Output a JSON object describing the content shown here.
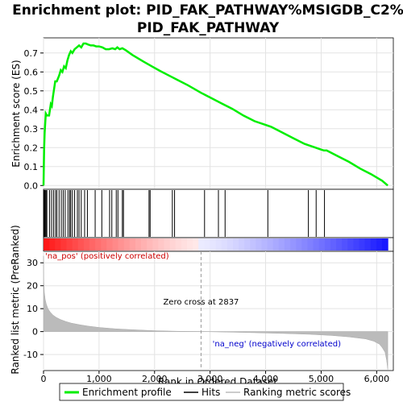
{
  "chart_data": {
    "type": "line",
    "title_line1": "Enrichment plot: PID_FAK_PATHWAY%MSIGDB_C2%",
    "title_line2": "PID_FAK_PATHWAY",
    "top_panel": {
      "ylabel": "Enrichment score (ES)",
      "ylim": [
        -0.02,
        0.78
      ],
      "yticks": [
        0.0,
        0.1,
        0.2,
        0.3,
        0.4,
        0.5,
        0.6,
        0.7
      ],
      "ytick_labels": [
        "0.0",
        "0.1",
        "0.2",
        "0.3",
        "0.4",
        "0.5",
        "0.6",
        "0.7"
      ],
      "grid": true,
      "series_color": "#00ee00",
      "es_x": [
        0,
        10,
        20,
        40,
        60,
        100,
        130,
        150,
        170,
        190,
        210,
        240,
        280,
        310,
        340,
        370,
        400,
        430,
        460,
        490,
        520,
        560,
        600,
        640,
        680,
        720,
        760,
        800,
        850,
        900,
        950,
        1000,
        1060,
        1120,
        1180,
        1240,
        1290,
        1330,
        1370,
        1420,
        1480,
        1600,
        1800,
        1950,
        2100,
        2300,
        2400,
        2600,
        2837,
        3000,
        3200,
        3400,
        3600,
        3800,
        4000,
        4100,
        4300,
        4500,
        4700,
        4800,
        4900,
        5000,
        5050,
        5100,
        5300,
        5500,
        5700,
        5900,
        6100,
        6200
      ],
      "es_y": [
        0.0,
        0.19,
        0.28,
        0.38,
        0.37,
        0.37,
        0.43,
        0.42,
        0.47,
        0.51,
        0.55,
        0.55,
        0.58,
        0.61,
        0.6,
        0.63,
        0.62,
        0.66,
        0.69,
        0.71,
        0.7,
        0.72,
        0.73,
        0.74,
        0.73,
        0.75,
        0.75,
        0.745,
        0.74,
        0.74,
        0.735,
        0.735,
        0.73,
        0.72,
        0.72,
        0.725,
        0.72,
        0.73,
        0.72,
        0.725,
        0.715,
        0.69,
        0.655,
        0.63,
        0.605,
        0.575,
        0.56,
        0.53,
        0.49,
        0.465,
        0.435,
        0.405,
        0.37,
        0.34,
        0.32,
        0.31,
        0.28,
        0.25,
        0.22,
        0.21,
        0.2,
        0.19,
        0.185,
        0.185,
        0.155,
        0.125,
        0.09,
        0.06,
        0.025,
        0.0
      ]
    },
    "hits": [
      5,
      12,
      20,
      30,
      45,
      60,
      110,
      145,
      180,
      215,
      240,
      280,
      320,
      355,
      390,
      440,
      470,
      490,
      520,
      560,
      610,
      640,
      680,
      740,
      790,
      930,
      1050,
      1190,
      1230,
      1310,
      1340,
      1420,
      1440,
      1900,
      1920,
      2320,
      2360,
      2900,
      3150,
      3270,
      4040,
      4770,
      4910,
      5060
    ],
    "bottom_panel": {
      "ylabel": "Ranked list metric (PreRanked)",
      "xlabel": "Rank in Ordered Dataset",
      "xlim": [
        0,
        6300
      ],
      "ylim": [
        -17,
        35
      ],
      "xticks": [
        0,
        1000,
        2000,
        3000,
        4000,
        5000,
        6000
      ],
      "xtick_labels": [
        "0",
        "1,000",
        "2,000",
        "3,000",
        "4,000",
        "5,000",
        "6,000"
      ],
      "yticks": [
        -10,
        0,
        10,
        20,
        30
      ],
      "ytick_labels": [
        "-10",
        "0",
        "10",
        "20",
        "30"
      ],
      "metric_x": [
        0,
        5,
        15,
        30,
        50,
        80,
        120,
        170,
        230,
        300,
        400,
        500,
        650,
        800,
        1000,
        1300,
        1600,
        2000,
        2400,
        2837,
        3300,
        3800,
        4300,
        4800,
        5200,
        5500,
        5800,
        5950,
        6050,
        6100,
        6150,
        6180,
        6200
      ],
      "metric_y": [
        33,
        22,
        17,
        14,
        12,
        10,
        8.5,
        7.2,
        6.2,
        5.3,
        4.4,
        3.7,
        3.0,
        2.4,
        1.8,
        1.2,
        0.8,
        0.4,
        0.15,
        0.0,
        -0.2,
        -0.5,
        -0.8,
        -1.2,
        -1.7,
        -2.3,
        -3.2,
        -4.2,
        -5.5,
        -7.0,
        -9.0,
        -12.5,
        -16.5
      ],
      "zero_cross_rank": 2837,
      "zero_cross_label": "Zero cross at 2837",
      "pos_label": "'na_pos' (positively correlated)",
      "neg_label": "'na_neg' (negatively correlated)",
      "pos_label_color": "#cc0000",
      "neg_label_color": "#0000cc"
    },
    "legend": {
      "items": [
        {
          "label": "Enrichment profile",
          "color": "#00ee00"
        },
        {
          "label": "Hits",
          "color": "#000000"
        },
        {
          "label": "Ranking metric scores",
          "color": "#bbbbbb"
        }
      ]
    }
  }
}
